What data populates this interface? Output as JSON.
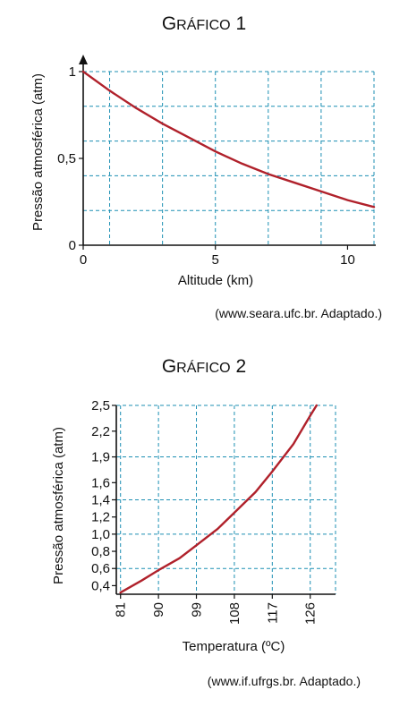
{
  "chart_data": [
    {
      "type": "line",
      "title_main": "Gráfico",
      "title_num": "1",
      "xlabel": "Altitude (km)",
      "ylabel": "Pressão atmosférica (atm)",
      "xlim": [
        0,
        11
      ],
      "ylim": [
        0,
        1
      ],
      "xticks": [
        "0",
        "5",
        "10"
      ],
      "yticks": [
        "0",
        "0,5",
        "1"
      ],
      "xgrid": [
        1,
        3,
        5,
        7,
        9,
        11
      ],
      "ygrid": [
        0.2,
        0.4,
        0.6,
        0.8,
        1.0
      ],
      "grid": true,
      "x": [
        0,
        1,
        2,
        3,
        4,
        5,
        6,
        7,
        8,
        9,
        10,
        11
      ],
      "y": [
        1.0,
        0.89,
        0.79,
        0.7,
        0.62,
        0.54,
        0.47,
        0.41,
        0.36,
        0.31,
        0.26,
        0.22
      ],
      "source": "(www.seara.ufc.br. Adaptado.)",
      "line_color": "#b0212b",
      "grid_color": "#1c8fb3"
    },
    {
      "type": "line",
      "title_main": "Gráfico",
      "title_num": "2",
      "xlabel": "Temperatura (ºC)",
      "ylabel": "Pressão atmosférica (atm)",
      "xlim": [
        80,
        132
      ],
      "ylim": [
        0.3,
        2.5
      ],
      "xticks": [
        "81",
        "90",
        "99",
        "108",
        "117",
        "126"
      ],
      "yticks": [
        "2,5",
        "2,2",
        "1,9",
        "1,6",
        "1,4",
        "1,2",
        "1,0",
        "0,8",
        "0,6",
        "0,4"
      ],
      "ytick_values": [
        2.5,
        2.2,
        1.9,
        1.6,
        1.4,
        1.2,
        1.0,
        0.8,
        0.6,
        0.4
      ],
      "xtick_values": [
        81,
        90,
        99,
        108,
        117,
        126
      ],
      "ygrid": [
        2.5,
        1.9,
        1.4,
        1.0,
        0.6
      ],
      "grid": true,
      "x": [
        81,
        86,
        90,
        95,
        99,
        104,
        108,
        113,
        117,
        122,
        126,
        127.5
      ],
      "y": [
        0.32,
        0.46,
        0.58,
        0.72,
        0.87,
        1.06,
        1.25,
        1.49,
        1.73,
        2.05,
        2.38,
        2.5
      ],
      "source": "(www.if.ufrgs.br. Adaptado.)",
      "line_color": "#b0212b",
      "grid_color": "#1c8fb3"
    }
  ]
}
